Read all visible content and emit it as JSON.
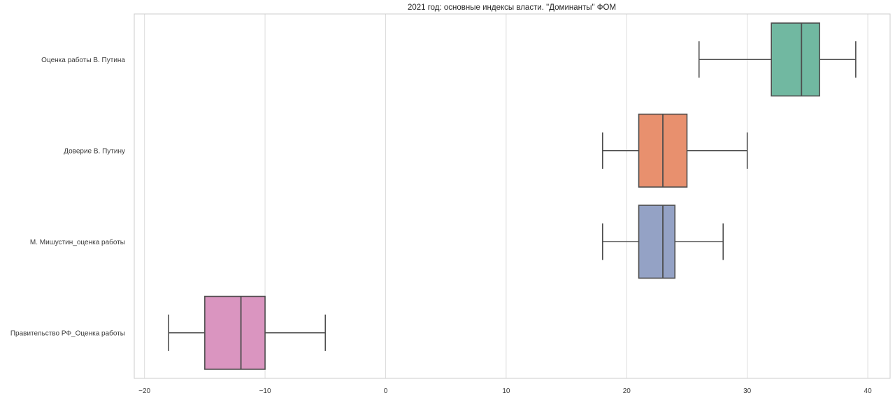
{
  "chart_data": {
    "type": "boxplot",
    "orientation": "horizontal",
    "title": "2021 год: основные индексы власти. \"Доминанты\" ФОМ",
    "x_ticks": [
      -20,
      -10,
      0,
      10,
      20,
      30,
      40
    ],
    "x_tick_labels": [
      "−20",
      "−10",
      "0",
      "10",
      "20",
      "30",
      "40"
    ],
    "xlim": [
      -20.85,
      41.85
    ],
    "grid": "vertical-gridlines-on",
    "legend": "none",
    "categories": [
      "Оценка работы В. Путина",
      "Доверие В. Путину",
      "М. Мишустин_оценка работы",
      "Правительство РФ_Оценка работы"
    ],
    "series": [
      {
        "name": "Оценка работы В. Путина",
        "whisker_low": 26,
        "q1": 32,
        "median": 34.5,
        "q3": 36,
        "whisker_high": 39,
        "fill": "#71b8a1"
      },
      {
        "name": "Доверие В. Путину",
        "whisker_low": 18,
        "q1": 21,
        "median": 23,
        "q3": 25,
        "whisker_high": 30,
        "fill": "#e8906e"
      },
      {
        "name": "М. Мишустин_оценка работы",
        "whisker_low": 18,
        "q1": 21,
        "median": 23,
        "q3": 24,
        "whisker_high": 28,
        "fill": "#94a2c5"
      },
      {
        "name": "Правительство РФ_Оценка работы",
        "whisker_low": -18,
        "q1": -15,
        "median": -12,
        "q3": -10,
        "whisker_high": -5,
        "fill": "#da95c0"
      }
    ],
    "colors": {
      "background": "#ffffff",
      "grid": "#dcdcdc",
      "spine": "#cccccc",
      "box_edge": "#4d4d4d",
      "tick_label": "#3a3a3a",
      "title": "#262626"
    }
  }
}
